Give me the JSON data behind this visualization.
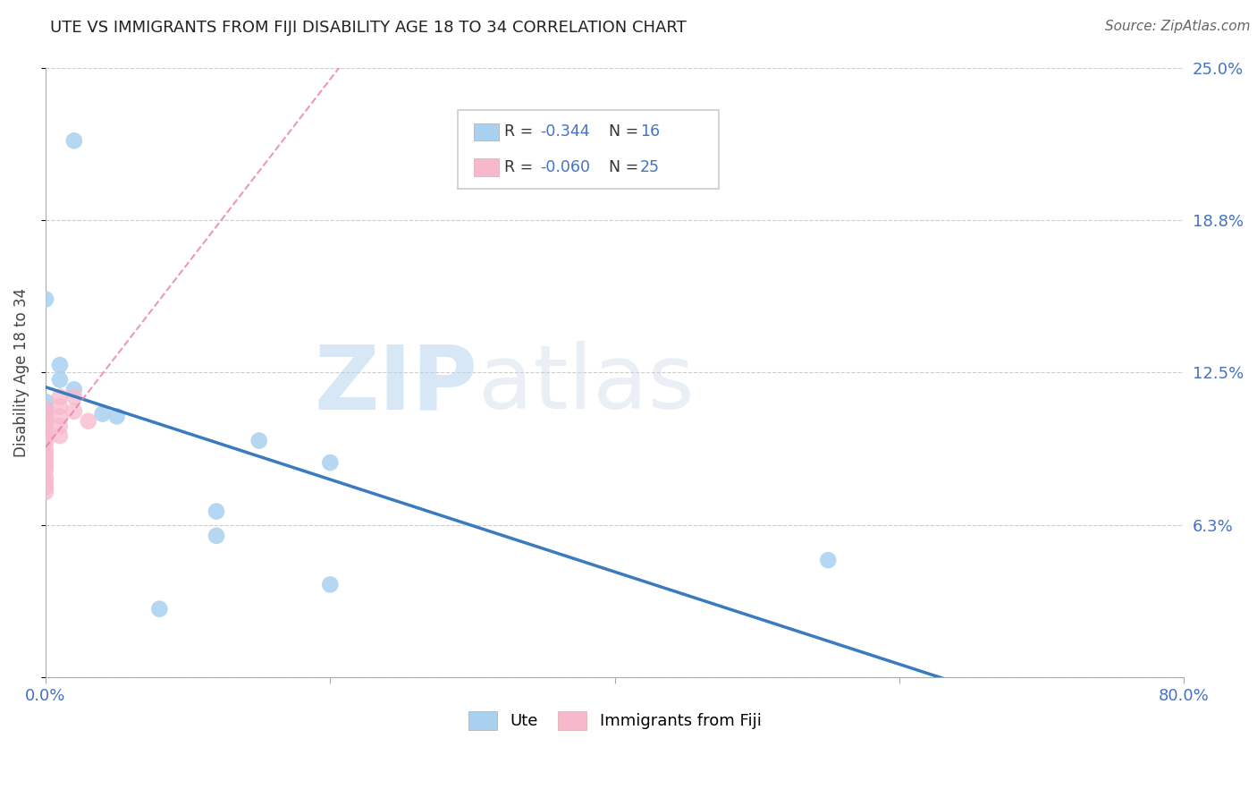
{
  "title": "UTE VS IMMIGRANTS FROM FIJI DISABILITY AGE 18 TO 34 CORRELATION CHART",
  "source": "Source: ZipAtlas.com",
  "ylabel": "Disability Age 18 to 34",
  "blue_label": "Ute",
  "pink_label": "Immigrants from Fiji",
  "blue_R": -0.344,
  "blue_N": 16,
  "pink_R": -0.06,
  "pink_N": 25,
  "xlim": [
    0.0,
    0.8
  ],
  "ylim": [
    0.0,
    0.25
  ],
  "yticks": [
    0.0,
    0.0625,
    0.125,
    0.1875,
    0.25
  ],
  "ytick_labels": [
    "",
    "6.3%",
    "12.5%",
    "18.8%",
    "25.0%"
  ],
  "xticks": [
    0.0,
    0.2,
    0.4,
    0.6,
    0.8
  ],
  "xtick_labels": [
    "0.0%",
    "",
    "",
    "",
    "80.0%"
  ],
  "grid_color": "#cccccc",
  "blue_color": "#a8d1f0",
  "pink_color": "#f7b8cb",
  "blue_line_color": "#3a7bbf",
  "pink_line_color": "#e87fa8",
  "watermark_zip": "ZIP",
  "watermark_atlas": "atlas",
  "blue_points_x": [
    0.02,
    0.0,
    0.01,
    0.01,
    0.02,
    0.0,
    0.0,
    0.04,
    0.05,
    0.15,
    0.2,
    0.12,
    0.55,
    0.12,
    0.08,
    0.2
  ],
  "blue_points_y": [
    0.22,
    0.155,
    0.128,
    0.122,
    0.118,
    0.113,
    0.11,
    0.108,
    0.107,
    0.097,
    0.088,
    0.068,
    0.048,
    0.058,
    0.028,
    0.038
  ],
  "pink_points_x": [
    0.0,
    0.0,
    0.0,
    0.0,
    0.0,
    0.0,
    0.0,
    0.0,
    0.0,
    0.0,
    0.0,
    0.0,
    0.0,
    0.0,
    0.0,
    0.0,
    0.0,
    0.01,
    0.01,
    0.01,
    0.01,
    0.01,
    0.02,
    0.02,
    0.03
  ],
  "pink_points_y": [
    0.11,
    0.108,
    0.106,
    0.104,
    0.102,
    0.1,
    0.098,
    0.096,
    0.093,
    0.091,
    0.089,
    0.087,
    0.085,
    0.082,
    0.08,
    0.078,
    0.076,
    0.115,
    0.111,
    0.107,
    0.103,
    0.099,
    0.115,
    0.109,
    0.105
  ]
}
